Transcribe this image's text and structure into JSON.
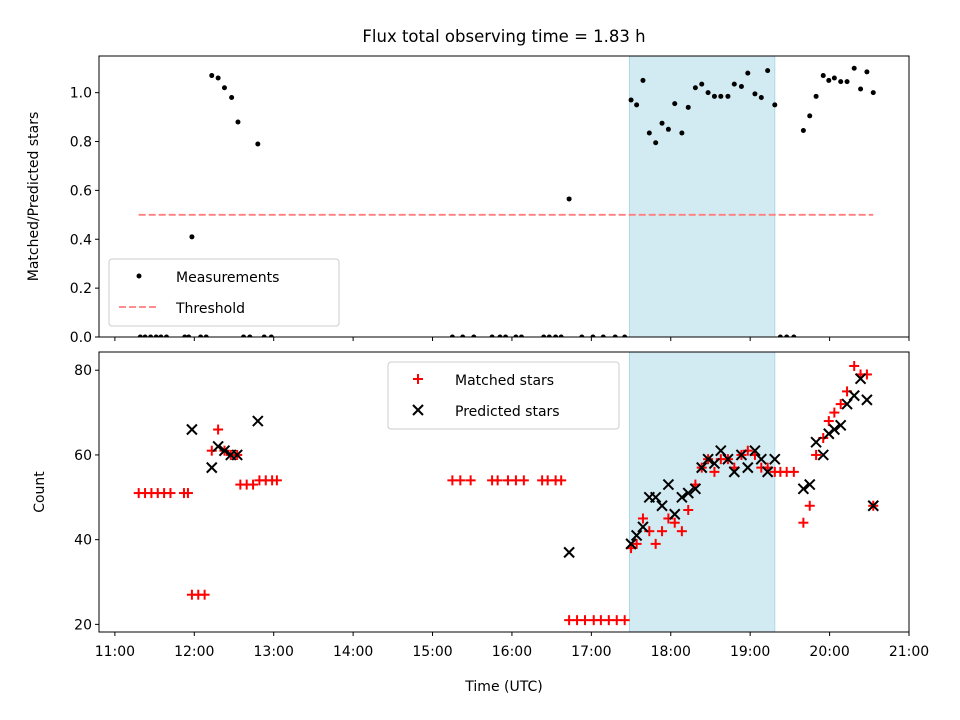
{
  "chart_data": {
    "type": "scatter",
    "title": "Flux total observing time = 1.83 h",
    "xlabel": "Time (UTC)",
    "x_units": "hours (UTC)",
    "xlim": [
      10.8,
      21.0
    ],
    "x_ticks": [
      {
        "value": 11,
        "label": "11:00"
      },
      {
        "value": 12,
        "label": "12:00"
      },
      {
        "value": 13,
        "label": "13:00"
      },
      {
        "value": 14,
        "label": "14:00"
      },
      {
        "value": 15,
        "label": "15:00"
      },
      {
        "value": 16,
        "label": "16:00"
      },
      {
        "value": 17,
        "label": "17:00"
      },
      {
        "value": 18,
        "label": "18:00"
      },
      {
        "value": 19,
        "label": "19:00"
      },
      {
        "value": 20,
        "label": "20:00"
      },
      {
        "value": 21,
        "label": "21:00"
      }
    ],
    "observing_window": {
      "start": 17.48,
      "end": 19.31,
      "color": "#add8e6"
    },
    "panels": [
      {
        "id": "ratio",
        "ylabel": "Matched/Predicted stars",
        "ylim": [
          0.0,
          1.15
        ],
        "y_ticks": [
          {
            "value": 0.0,
            "label": "0.0"
          },
          {
            "value": 0.2,
            "label": "0.2"
          },
          {
            "value": 0.4,
            "label": "0.4"
          },
          {
            "value": 0.6,
            "label": "0.6"
          },
          {
            "value": 0.8,
            "label": "0.8"
          },
          {
            "value": 1.0,
            "label": "1.0"
          }
        ],
        "legend": {
          "location": "lower-left",
          "entries": [
            "Measurements",
            "Threshold"
          ]
        },
        "series": [
          {
            "name": "Measurements",
            "marker": "dot",
            "color": "#000000",
            "points": [
              [
                11.32,
                0
              ],
              [
                11.38,
                0
              ],
              [
                11.45,
                0
              ],
              [
                11.52,
                0
              ],
              [
                11.58,
                0
              ],
              [
                11.65,
                0
              ],
              [
                11.88,
                0
              ],
              [
                11.93,
                0
              ],
              [
                11.97,
                0.41
              ],
              [
                12.08,
                0
              ],
              [
                12.15,
                0
              ],
              [
                12.22,
                1.07
              ],
              [
                12.3,
                1.06
              ],
              [
                12.38,
                1.02
              ],
              [
                12.47,
                0.98
              ],
              [
                12.55,
                0.88
              ],
              [
                12.62,
                0
              ],
              [
                12.7,
                0
              ],
              [
                12.8,
                0.79
              ],
              [
                12.88,
                0
              ],
              [
                12.97,
                0
              ],
              [
                15.25,
                0
              ],
              [
                15.38,
                0
              ],
              [
                15.52,
                0
              ],
              [
                15.75,
                0
              ],
              [
                15.85,
                0
              ],
              [
                15.92,
                0
              ],
              [
                16.05,
                0
              ],
              [
                16.12,
                0
              ],
              [
                16.4,
                0
              ],
              [
                16.47,
                0
              ],
              [
                16.55,
                0
              ],
              [
                16.62,
                0
              ],
              [
                16.72,
                0.565
              ],
              [
                16.88,
                0
              ],
              [
                17.02,
                0
              ],
              [
                17.15,
                0
              ],
              [
                17.3,
                0
              ],
              [
                17.42,
                0
              ],
              [
                17.5,
                0.97
              ],
              [
                17.57,
                0.95
              ],
              [
                17.65,
                1.05
              ],
              [
                17.73,
                0.835
              ],
              [
                17.81,
                0.795
              ],
              [
                17.89,
                0.875
              ],
              [
                17.97,
                0.85
              ],
              [
                18.05,
                0.955
              ],
              [
                18.14,
                0.835
              ],
              [
                18.22,
                0.94
              ],
              [
                18.31,
                1.02
              ],
              [
                18.39,
                1.035
              ],
              [
                18.47,
                1.0
              ],
              [
                18.55,
                0.985
              ],
              [
                18.63,
                0.985
              ],
              [
                18.72,
                0.985
              ],
              [
                18.8,
                1.035
              ],
              [
                18.89,
                1.025
              ],
              [
                18.97,
                1.08
              ],
              [
                19.06,
                0.995
              ],
              [
                19.14,
                0.98
              ],
              [
                19.22,
                1.09
              ],
              [
                19.31,
                0.95
              ],
              [
                19.38,
                0
              ],
              [
                19.46,
                0
              ],
              [
                19.55,
                0
              ],
              [
                19.67,
                0.845
              ],
              [
                19.75,
                0.905
              ],
              [
                19.83,
                0.985
              ],
              [
                19.92,
                1.07
              ],
              [
                19.99,
                1.05
              ],
              [
                20.06,
                1.06
              ],
              [
                20.14,
                1.045
              ],
              [
                20.22,
                1.045
              ],
              [
                20.31,
                1.1
              ],
              [
                20.39,
                1.015
              ],
              [
                20.47,
                1.085
              ],
              [
                20.55,
                1.0
              ]
            ]
          },
          {
            "name": "Threshold",
            "marker": "dashed-line",
            "color": "#ff7f7f",
            "points": [
              [
                11.3,
                0.5
              ],
              [
                20.55,
                0.5
              ]
            ]
          }
        ]
      },
      {
        "id": "counts",
        "ylabel": "Count",
        "ylim": [
          18.2,
          84.3
        ],
        "y_ticks": [
          {
            "value": 20,
            "label": "20"
          },
          {
            "value": 40,
            "label": "40"
          },
          {
            "value": 60,
            "label": "60"
          },
          {
            "value": 80,
            "label": "80"
          }
        ],
        "legend": {
          "location": "upper-center",
          "entries": [
            "Matched stars",
            "Predicted stars"
          ]
        },
        "series": [
          {
            "name": "Matched stars",
            "marker": "plus",
            "color": "#ff0000",
            "points": [
              [
                11.3,
                51
              ],
              [
                11.38,
                51
              ],
              [
                11.46,
                51
              ],
              [
                11.54,
                51
              ],
              [
                11.62,
                51
              ],
              [
                11.7,
                51
              ],
              [
                11.87,
                51
              ],
              [
                11.92,
                51
              ],
              [
                11.97,
                27
              ],
              [
                12.05,
                27
              ],
              [
                12.13,
                27
              ],
              [
                12.22,
                61
              ],
              [
                12.3,
                66
              ],
              [
                12.38,
                61
              ],
              [
                12.46,
                60
              ],
              [
                12.54,
                60
              ],
              [
                12.58,
                53
              ],
              [
                12.66,
                53
              ],
              [
                12.74,
                53
              ],
              [
                12.82,
                54
              ],
              [
                12.9,
                54
              ],
              [
                12.98,
                54
              ],
              [
                13.04,
                54
              ],
              [
                15.25,
                54
              ],
              [
                15.35,
                54
              ],
              [
                15.48,
                54
              ],
              [
                15.75,
                54
              ],
              [
                15.82,
                54
              ],
              [
                15.95,
                54
              ],
              [
                16.05,
                54
              ],
              [
                16.15,
                54
              ],
              [
                16.38,
                54
              ],
              [
                16.45,
                54
              ],
              [
                16.55,
                54
              ],
              [
                16.62,
                54
              ],
              [
                16.72,
                21
              ],
              [
                16.82,
                21
              ],
              [
                16.92,
                21
              ],
              [
                17.03,
                21
              ],
              [
                17.12,
                21
              ],
              [
                17.22,
                21
              ],
              [
                17.32,
                21
              ],
              [
                17.42,
                21
              ],
              [
                17.5,
                38
              ],
              [
                17.57,
                39
              ],
              [
                17.65,
                45
              ],
              [
                17.73,
                42
              ],
              [
                17.81,
                39
              ],
              [
                17.89,
                42
              ],
              [
                17.97,
                45
              ],
              [
                18.05,
                44
              ],
              [
                18.14,
                42
              ],
              [
                18.22,
                47
              ],
              [
                18.31,
                53
              ],
              [
                18.39,
                57
              ],
              [
                18.47,
                59
              ],
              [
                18.55,
                56
              ],
              [
                18.63,
                59
              ],
              [
                18.72,
                59
              ],
              [
                18.8,
                57
              ],
              [
                18.89,
                60
              ],
              [
                18.97,
                61
              ],
              [
                19.06,
                60
              ],
              [
                19.14,
                57
              ],
              [
                19.22,
                57
              ],
              [
                19.31,
                56
              ],
              [
                19.38,
                56
              ],
              [
                19.46,
                56
              ],
              [
                19.55,
                56
              ],
              [
                19.67,
                44
              ],
              [
                19.75,
                48
              ],
              [
                19.83,
                60
              ],
              [
                19.92,
                64
              ],
              [
                19.99,
                68
              ],
              [
                20.06,
                70
              ],
              [
                20.14,
                72
              ],
              [
                20.22,
                75
              ],
              [
                20.31,
                81
              ],
              [
                20.39,
                79
              ],
              [
                20.47,
                79
              ],
              [
                20.55,
                48
              ]
            ]
          },
          {
            "name": "Predicted stars",
            "marker": "x",
            "color": "#000000",
            "points": [
              [
                11.97,
                66
              ],
              [
                12.22,
                57
              ],
              [
                12.3,
                62
              ],
              [
                12.38,
                61
              ],
              [
                12.46,
                60
              ],
              [
                12.54,
                60
              ],
              [
                12.8,
                68
              ],
              [
                16.72,
                37
              ],
              [
                17.5,
                39
              ],
              [
                17.57,
                41
              ],
              [
                17.65,
                43
              ],
              [
                17.73,
                50
              ],
              [
                17.81,
                50
              ],
              [
                17.89,
                48
              ],
              [
                17.97,
                53
              ],
              [
                18.05,
                46
              ],
              [
                18.14,
                50
              ],
              [
                18.22,
                51
              ],
              [
                18.31,
                52
              ],
              [
                18.39,
                57
              ],
              [
                18.47,
                59
              ],
              [
                18.55,
                58
              ],
              [
                18.63,
                61
              ],
              [
                18.72,
                59
              ],
              [
                18.8,
                56
              ],
              [
                18.89,
                60
              ],
              [
                18.97,
                57
              ],
              [
                19.06,
                61
              ],
              [
                19.14,
                59
              ],
              [
                19.22,
                56
              ],
              [
                19.31,
                59
              ],
              [
                19.67,
                52
              ],
              [
                19.75,
                53
              ],
              [
                19.83,
                63
              ],
              [
                19.92,
                60
              ],
              [
                19.99,
                65
              ],
              [
                20.06,
                66
              ],
              [
                20.14,
                67
              ],
              [
                20.22,
                72
              ],
              [
                20.31,
                74
              ],
              [
                20.39,
                78
              ],
              [
                20.47,
                73
              ],
              [
                20.55,
                48
              ]
            ]
          }
        ]
      }
    ]
  }
}
